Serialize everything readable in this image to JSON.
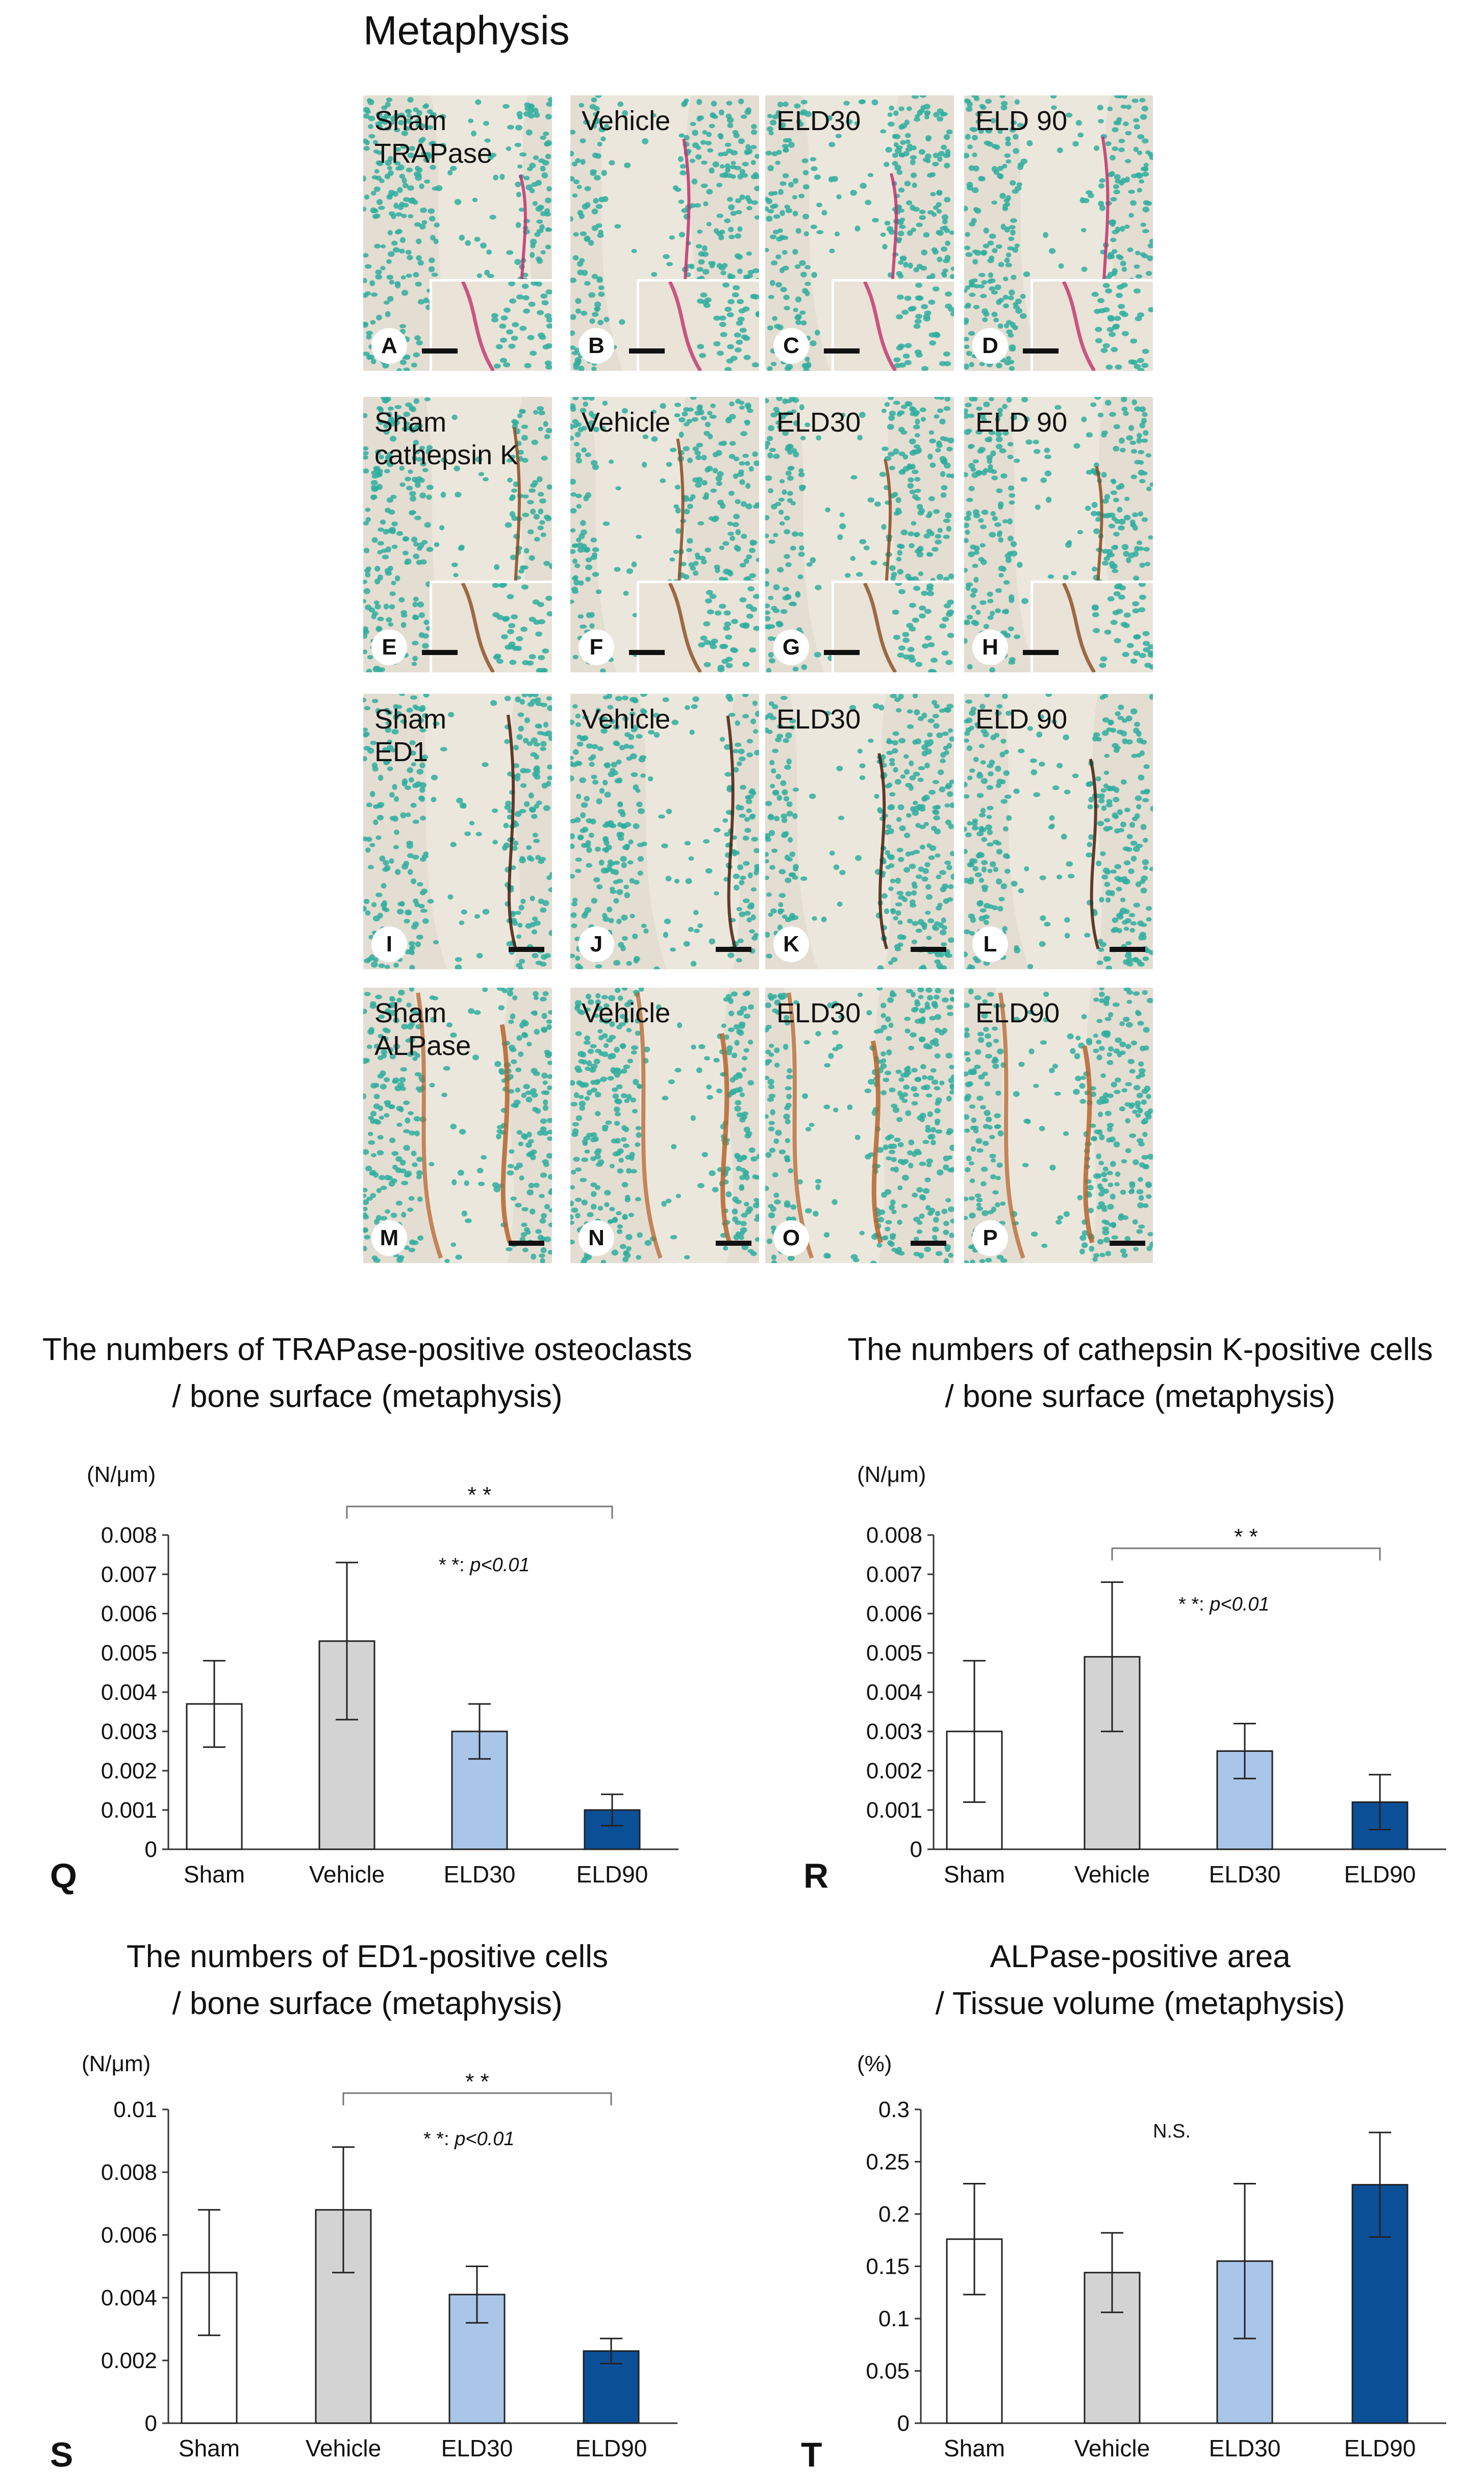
{
  "figure_title": "Metaphysis",
  "panels": [
    {
      "letter": "A",
      "label": "Sham\nTRAPase",
      "stain": "trap",
      "inset": true
    },
    {
      "letter": "B",
      "label": "Vehicle",
      "stain": "trap",
      "inset": true
    },
    {
      "letter": "C",
      "label": "ELD30",
      "stain": "trap",
      "inset": true
    },
    {
      "letter": "D",
      "label": "ELD 90",
      "stain": "trap",
      "inset": true
    },
    {
      "letter": "E",
      "label": "Sham\ncathepsin K",
      "stain": "catk",
      "inset": true
    },
    {
      "letter": "F",
      "label": "Vehicle",
      "stain": "catk",
      "inset": true
    },
    {
      "letter": "G",
      "label": "ELD30",
      "stain": "catk",
      "inset": true
    },
    {
      "letter": "H",
      "label": "ELD 90",
      "stain": "catk",
      "inset": true
    },
    {
      "letter": "I",
      "label": "Sham\nED1",
      "stain": "ed1",
      "inset": false
    },
    {
      "letter": "J",
      "label": "Vehicle",
      "stain": "ed1",
      "inset": false
    },
    {
      "letter": "K",
      "label": "ELD30",
      "stain": "ed1",
      "inset": false
    },
    {
      "letter": "L",
      "label": "ELD 90",
      "stain": "ed1",
      "inset": false
    },
    {
      "letter": "M",
      "label": "Sham\nALPase",
      "stain": "alp",
      "inset": false
    },
    {
      "letter": "N",
      "label": "Vehicle",
      "stain": "alp",
      "inset": false
    },
    {
      "letter": "O",
      "label": "ELD30",
      "stain": "alp",
      "inset": false
    },
    {
      "letter": "P",
      "label": "ELD90",
      "stain": "alp",
      "inset": false
    }
  ],
  "colors": {
    "tissue_bg": "#e4ddd2",
    "nuclei": "#2fae9f",
    "trap": "#c2306c",
    "catk": "#8a4a1e",
    "ed1": "#4a1c0c",
    "alp": "#b5642d",
    "sham": "#ffffff",
    "vehicle": "#d3d3d3",
    "eld30": "#a9c6e8",
    "eld90": "#0b4f97"
  },
  "chart_data": [
    {
      "panel_letter": "Q",
      "type": "bar",
      "title": "The numbers of TRAPase-positive osteoclasts\n/ bone surface (metaphysis)",
      "unit": "(N/μm)",
      "categories": [
        "Sham",
        "Vehicle",
        "ELD30",
        "ELD90"
      ],
      "values": [
        0.0037,
        0.0053,
        0.003,
        0.001
      ],
      "errors": [
        0.0011,
        0.002,
        0.0007,
        0.0004
      ],
      "ylim": [
        0,
        0.008
      ],
      "yticks": [
        "0",
        "0.001",
        "0.002",
        "0.003",
        "0.004",
        "0.005",
        "0.006",
        "0.007",
        "0.008"
      ],
      "bracket": {
        "from": 1,
        "to": 3,
        "label": "* *"
      },
      "annotation": "* *: ",
      "annotation_italic": "p<0.01"
    },
    {
      "panel_letter": "R",
      "type": "bar",
      "title": "The numbers of cathepsin K-positive cells\n/ bone surface (metaphysis)",
      "unit": "(N/μm)",
      "categories": [
        "Sham",
        "Vehicle",
        "ELD30",
        "ELD90"
      ],
      "values": [
        0.003,
        0.0049,
        0.0025,
        0.0012
      ],
      "errors": [
        0.0018,
        0.0019,
        0.0007,
        0.0007
      ],
      "ylim": [
        0,
        0.008
      ],
      "yticks": [
        "0",
        "0.001",
        "0.002",
        "0.003",
        "0.004",
        "0.005",
        "0.006",
        "0.007",
        "0.008"
      ],
      "bracket": {
        "from": 1,
        "to": 3,
        "label": "* *"
      },
      "annotation": "* *: ",
      "annotation_italic": "p<0.01"
    },
    {
      "panel_letter": "S",
      "type": "bar",
      "title": "The numbers of ED1-positive cells\n/ bone surface (metaphysis)",
      "unit": "(N/μm)",
      "categories": [
        "Sham",
        "Vehicle",
        "ELD30",
        "ELD90"
      ],
      "values": [
        0.0048,
        0.0068,
        0.0041,
        0.0023
      ],
      "errors": [
        0.002,
        0.002,
        0.0009,
        0.0004
      ],
      "ylim": [
        0,
        0.01
      ],
      "yticks": [
        "0",
        "0.002",
        "0.004",
        "0.006",
        "0.008",
        "0.01"
      ],
      "bracket": {
        "from": 1,
        "to": 3,
        "label": "* *"
      },
      "annotation": "* *: ",
      "annotation_italic": "p<0.01"
    },
    {
      "panel_letter": "T",
      "type": "bar",
      "title": "ALPase-positive area\n/ Tissue volume (metaphysis)",
      "unit": "(%)",
      "categories": [
        "Sham",
        "Vehicle",
        "ELD30",
        "ELD90"
      ],
      "values": [
        0.176,
        0.144,
        0.155,
        0.228
      ],
      "errors": [
        0.053,
        0.038,
        0.074,
        0.05
      ],
      "ylim": [
        0,
        0.3
      ],
      "yticks": [
        "0",
        "0.05",
        "0.1",
        "0.15",
        "0.2",
        "0.25",
        "0.3"
      ],
      "bracket": null,
      "annotation": "N.S.",
      "annotation_italic": ""
    }
  ]
}
